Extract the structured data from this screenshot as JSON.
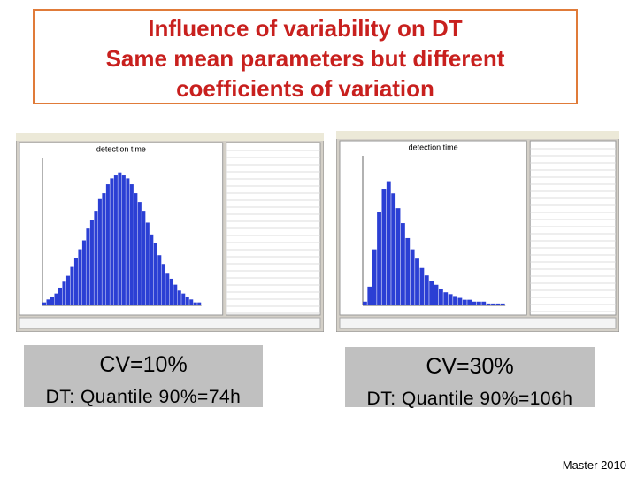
{
  "header": {
    "title_lines": [
      "Influence of variability on DT",
      "Same mean parameters but different",
      "coefficients of variation"
    ]
  },
  "panels": [
    {
      "histogram": {
        "title": "detection time",
        "color": "#2b3fd4",
        "ylim": [
          0,
          0.05
        ],
        "values": [
          0.001,
          0.002,
          0.003,
          0.004,
          0.006,
          0.008,
          0.01,
          0.013,
          0.016,
          0.019,
          0.022,
          0.026,
          0.029,
          0.032,
          0.036,
          0.038,
          0.041,
          0.043,
          0.044,
          0.045,
          0.044,
          0.043,
          0.041,
          0.038,
          0.035,
          0.032,
          0.028,
          0.024,
          0.021,
          0.017,
          0.014,
          0.011,
          0.009,
          0.007,
          0.005,
          0.004,
          0.003,
          0.002,
          0.001,
          0.001
        ]
      },
      "caption": "CV=10%",
      "note": "DT: Quantile 90%=74h"
    },
    {
      "histogram": {
        "title": "detection time",
        "color": "#2b3fd4",
        "ylim": [
          0,
          0.08
        ],
        "values": [
          0.002,
          0.01,
          0.03,
          0.05,
          0.062,
          0.066,
          0.06,
          0.052,
          0.044,
          0.036,
          0.03,
          0.025,
          0.02,
          0.016,
          0.013,
          0.011,
          0.009,
          0.007,
          0.006,
          0.005,
          0.004,
          0.003,
          0.003,
          0.002,
          0.002,
          0.002,
          0.001,
          0.001,
          0.001,
          0.001
        ]
      },
      "caption": "CV=30%",
      "note": "DT: Quantile 90%=106h"
    }
  ],
  "footer": "Master 2010"
}
